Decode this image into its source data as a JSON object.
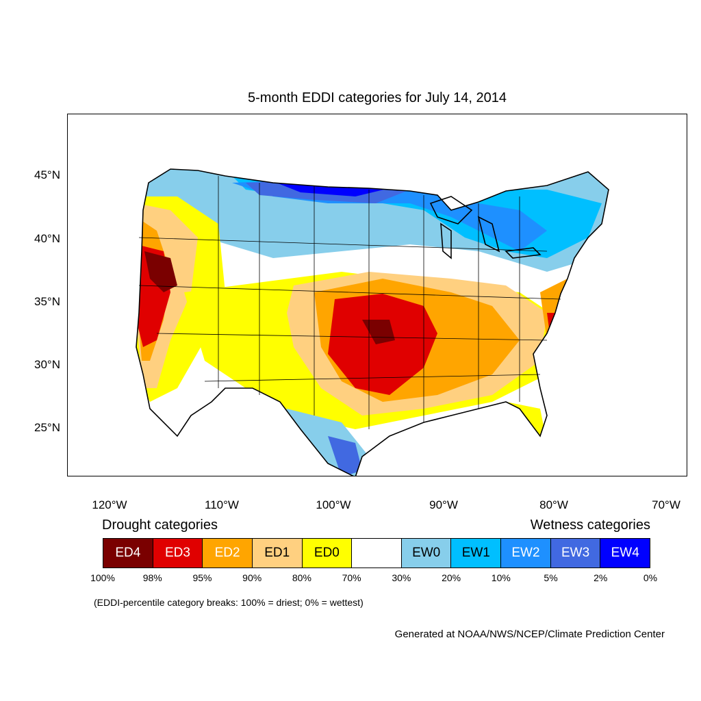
{
  "title": "5-month EDDI categories for July 14, 2014",
  "axes": {
    "lat_labels": [
      "45°N",
      "40°N",
      "35°N",
      "30°N",
      "25°N"
    ],
    "lon_labels": [
      "120°W",
      "110°W",
      "100°W",
      "90°W",
      "80°W",
      "70°W"
    ]
  },
  "legend": {
    "drought_heading": "Drought categories",
    "wetness_heading": "Wetness categories",
    "categories": [
      {
        "label": "ED4",
        "color": "#7a0000",
        "text_color": "#ffffff"
      },
      {
        "label": "ED3",
        "color": "#e00000",
        "text_color": "#ffffff"
      },
      {
        "label": "ED2",
        "color": "#ffa500",
        "text_color": "#ffffff"
      },
      {
        "label": "ED1",
        "color": "#ffd080",
        "text_color": "#000000"
      },
      {
        "label": "ED0",
        "color": "#ffff00",
        "text_color": "#000000"
      },
      {
        "label": "",
        "color": "#ffffff",
        "text_color": "#000000"
      },
      {
        "label": "EW0",
        "color": "#87ceeb",
        "text_color": "#000000"
      },
      {
        "label": "EW1",
        "color": "#00bfff",
        "text_color": "#000000"
      },
      {
        "label": "EW2",
        "color": "#1e90ff",
        "text_color": "#ffffff"
      },
      {
        "label": "EW3",
        "color": "#4169e1",
        "text_color": "#ffffff"
      },
      {
        "label": "EW4",
        "color": "#0000ff",
        "text_color": "#ffffff"
      }
    ],
    "percent_breaks": [
      "100%",
      "98%",
      "95%",
      "90%",
      "80%",
      "70%",
      "30%",
      "20%",
      "10%",
      "5%",
      "2%",
      "0%"
    ]
  },
  "note": "(EDDI-percentile category breaks: 100% = driest; 0% = wettest)",
  "credit": "Generated at NOAA/NWS/NCEP/Climate Prediction Center"
}
